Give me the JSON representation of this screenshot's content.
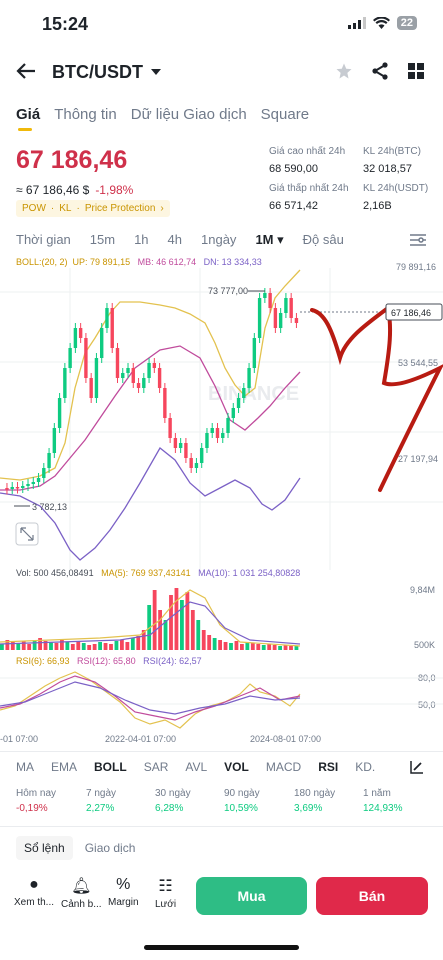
{
  "status": {
    "time": "15:24",
    "battery": "22"
  },
  "header": {
    "pair": "BTC/USDT"
  },
  "tabs": [
    "Giá",
    "Thông tin",
    "Dữ liệu Giao dịch",
    "Square"
  ],
  "price": {
    "last": "67 186,46",
    "converted": "≈ 67 186,46 $",
    "change": "-1,98%",
    "tags": [
      "POW",
      "·",
      "KL",
      "·",
      "Price Protection",
      "›"
    ]
  },
  "stats": {
    "high_label": "Giá cao nhất 24h",
    "high": "68 590,00",
    "low_label": "Giá thấp nhất 24h",
    "low": "66 571,42",
    "vol_btc_label": "KL 24h(BTC)",
    "vol_btc": "32 018,57",
    "vol_usdt_label": "KL 24h(USDT)",
    "vol_usdt": "2,16B"
  },
  "time_tabs": [
    "Thời gian",
    "15m",
    "1h",
    "4h",
    "1ngày",
    "1M ▾",
    "Độ sâu"
  ],
  "boll": {
    "label": "BOLL:(20, 2)",
    "up": "UP: 79 891,15",
    "mb": "MB: 46 612,74",
    "dn": "DN: 13 334,33"
  },
  "chart_axis": {
    "y1": "79 891,16",
    "max_label": "73 777,00",
    "current": "67 186,46",
    "y2": "53 544,55",
    "y3": "27 197,94",
    "min_label": "3 782,13"
  },
  "vol": {
    "label": "Vol: 500 456,08491",
    "ma5": "MA(5): 769 937,43141",
    "ma10": "MA(10): 1 031 254,80828",
    "y_top": "9,84M",
    "y_bottom": "500K"
  },
  "rsi": {
    "rsi6": "RSI(6): 66,93",
    "rsi12": "RSI(12): 65,80",
    "rsi24": "RSI(24): 62,57",
    "y80": "80,0",
    "y50": "50,0"
  },
  "x_labels": [
    "-01 07:00",
    "2022-04-01 07:00",
    "2024-08-01 07:00"
  ],
  "indicator_tabs": [
    "MA",
    "EMA",
    "BOLL",
    "SAR",
    "AVL",
    "VOL",
    "MACD",
    "RSI",
    "KD."
  ],
  "performance": [
    {
      "label": "Hôm nay",
      "value": "-0,19%"
    },
    {
      "label": "7 ngày",
      "value": "2,27%"
    },
    {
      "label": "30 ngày",
      "value": "6,28%"
    },
    {
      "label": "90 ngày",
      "value": "10,59%"
    },
    {
      "label": "180 ngày",
      "value": "3,69%"
    },
    {
      "label": "1 năm",
      "value": "124,93%"
    }
  ],
  "book_tabs": [
    "Sổ lệnh",
    "Giao dịch"
  ],
  "bottom": {
    "items": [
      "Xem th...",
      "Cảnh b...",
      "Margin",
      "Lưới"
    ],
    "buy": "Mua",
    "sell": "Bán"
  },
  "watermark": "BINANCE"
}
